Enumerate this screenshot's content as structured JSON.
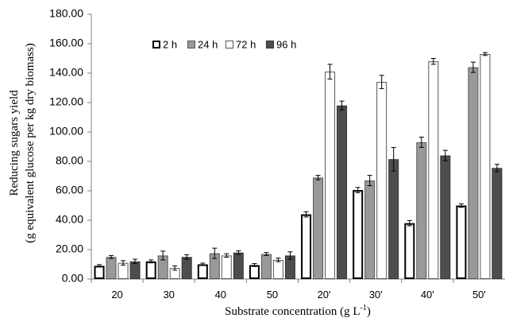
{
  "chart_data": {
    "type": "bar",
    "categories": [
      "20",
      "30",
      "40",
      "50",
      "20'",
      "30'",
      "40'",
      "50'"
    ],
    "series": [
      {
        "name": "2 h",
        "fill": "#ffffff",
        "stroke": "#000000",
        "values": [
          9,
          12,
          10,
          9.5,
          44,
          60.5,
          38,
          50
        ],
        "errors": [
          0.8,
          1,
          0.8,
          1,
          1.8,
          1.8,
          1.8,
          1.2
        ]
      },
      {
        "name": "24 h",
        "fill": "#999999",
        "stroke": "#555555",
        "values": [
          15,
          16,
          17.5,
          17,
          69,
          67,
          93,
          144
        ],
        "errors": [
          1,
          3,
          3.5,
          1,
          1.5,
          3.5,
          3.5,
          3.5
        ]
      },
      {
        "name": "72 h",
        "fill": "#ffffff",
        "stroke": "#555555",
        "values": [
          11,
          7.5,
          16,
          13,
          141,
          134,
          148,
          153
        ],
        "errors": [
          1.5,
          1.5,
          1.2,
          1.2,
          5,
          4.5,
          2,
          1
        ]
      },
      {
        "name": "96 h",
        "fill": "#4d4d4d",
        "stroke": "#333333",
        "values": [
          12,
          15,
          18,
          16,
          118,
          81.5,
          84,
          75.5
        ],
        "errors": [
          1.5,
          1.5,
          1.2,
          2.5,
          3,
          8,
          3.5,
          2.5
        ]
      }
    ],
    "ylim": [
      0,
      180
    ],
    "yticks": [
      "0.00",
      "20.00",
      "40.00",
      "60.00",
      "80.00",
      "100.00",
      "120.00",
      "140.00",
      "160.00",
      "180.00"
    ],
    "ylabel_line1": "Reducing sugars yield",
    "ylabel_line2": "(g equivalent glucose per kg dry biomass)",
    "xlabel": "Substrate concentration (g L",
    "xlabel_sup": "-1",
    "xlabel_end": ")",
    "legend_position": "top"
  }
}
